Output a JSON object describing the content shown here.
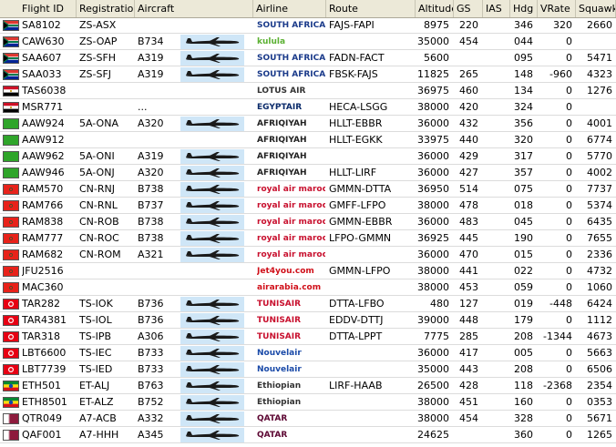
{
  "columns": {
    "flight_id": "Flight ID",
    "registration": "Registration",
    "aircraft": "Aircraft",
    "airline": "Airline",
    "route": "Route",
    "altitude": "Altitude",
    "gs": "GS",
    "ias": "IAS",
    "hdg": "Hdg",
    "vrate": "VRate",
    "squawk": "Squawk"
  },
  "rows": [
    {
      "flight_id": "SA8102",
      "registration": "ZS-ASX",
      "aircraft": "",
      "airline": "SOUTH AFRICAN AIRWAYS",
      "route": "FAJS-FAPI",
      "altitude": "8975",
      "gs": "220",
      "ias": "",
      "hdg": "346",
      "vrate": "320",
      "squawk": "2660",
      "flag": "za",
      "plane": false,
      "logo_color": "#1a3a8a"
    },
    {
      "flight_id": "CAW630",
      "registration": "ZS-OAP",
      "aircraft": "B734",
      "airline": "kulula",
      "route": "",
      "altitude": "35000",
      "gs": "454",
      "ias": "",
      "hdg": "044",
      "vrate": "0",
      "squawk": "",
      "flag": "za",
      "plane": true,
      "logo_color": "#5ab031"
    },
    {
      "flight_id": "SAA607",
      "registration": "ZS-SFH",
      "aircraft": "A319",
      "airline": "SOUTH AFRICAN AIRWAYS",
      "route": "FADN-FACT",
      "altitude": "5600",
      "gs": "",
      "ias": "",
      "hdg": "095",
      "vrate": "0",
      "squawk": "5471",
      "flag": "za",
      "plane": true,
      "logo_color": "#1a3a8a"
    },
    {
      "flight_id": "SAA033",
      "registration": "ZS-SFJ",
      "aircraft": "A319",
      "airline": "SOUTH AFRICAN AIRWAYS",
      "route": "FBSK-FAJS",
      "altitude": "11825",
      "gs": "265",
      "ias": "",
      "hdg": "148",
      "vrate": "-960",
      "squawk": "4323",
      "flag": "za",
      "plane": true,
      "logo_color": "#1a3a8a"
    },
    {
      "flight_id": "TAS6038",
      "registration": "",
      "aircraft": "",
      "airline": "LOTUS AIR",
      "route": "",
      "altitude": "36975",
      "gs": "460",
      "ias": "",
      "hdg": "134",
      "vrate": "0",
      "squawk": "1276",
      "flag": "eg",
      "plane": false,
      "logo_color": "#333333"
    },
    {
      "flight_id": "MSR771",
      "registration": "",
      "aircraft": "...",
      "airline": "EGYPTAIR",
      "route": "HECA-LSGG",
      "altitude": "38000",
      "gs": "420",
      "ias": "",
      "hdg": "324",
      "vrate": "0",
      "squawk": "",
      "flag": "eg",
      "plane": false,
      "logo_color": "#0a2a6a"
    },
    {
      "flight_id": "AAW924",
      "registration": "5A-ONA",
      "aircraft": "A320",
      "airline": "AFRIQIYAH",
      "route": "HLLT-EBBR",
      "altitude": "36000",
      "gs": "432",
      "ias": "",
      "hdg": "356",
      "vrate": "0",
      "squawk": "4001",
      "flag": "ly",
      "plane": true,
      "logo_color": "#222222"
    },
    {
      "flight_id": "AAW912",
      "registration": "",
      "aircraft": "",
      "airline": "AFRIQIYAH",
      "route": "HLLT-EGKK",
      "altitude": "33975",
      "gs": "440",
      "ias": "",
      "hdg": "320",
      "vrate": "0",
      "squawk": "6774",
      "flag": "ly",
      "plane": false,
      "logo_color": "#222222"
    },
    {
      "flight_id": "AAW962",
      "registration": "5A-ONI",
      "aircraft": "A319",
      "airline": "AFRIQIYAH",
      "route": "",
      "altitude": "36000",
      "gs": "429",
      "ias": "",
      "hdg": "317",
      "vrate": "0",
      "squawk": "5770",
      "flag": "ly",
      "plane": true,
      "logo_color": "#222222"
    },
    {
      "flight_id": "AAW946",
      "registration": "5A-ONJ",
      "aircraft": "A320",
      "airline": "AFRIQIYAH",
      "route": "HLLT-LIRF",
      "altitude": "36000",
      "gs": "427",
      "ias": "",
      "hdg": "357",
      "vrate": "0",
      "squawk": "4002",
      "flag": "ly",
      "plane": true,
      "logo_color": "#222222"
    },
    {
      "flight_id": "RAM570",
      "registration": "CN-RNJ",
      "aircraft": "B738",
      "airline": "royal air maroc",
      "route": "GMMN-DTTA",
      "altitude": "36950",
      "gs": "514",
      "ias": "",
      "hdg": "075",
      "vrate": "0",
      "squawk": "7737",
      "flag": "ma",
      "plane": true,
      "logo_color": "#c8102e"
    },
    {
      "flight_id": "RAM766",
      "registration": "CN-RNL",
      "aircraft": "B737",
      "airline": "royal air maroc",
      "route": "GMFF-LFPO",
      "altitude": "38000",
      "gs": "478",
      "ias": "",
      "hdg": "018",
      "vrate": "0",
      "squawk": "5374",
      "flag": "ma",
      "plane": true,
      "logo_color": "#c8102e"
    },
    {
      "flight_id": "RAM838",
      "registration": "CN-ROB",
      "aircraft": "B738",
      "airline": "royal air maroc",
      "route": "GMMN-EBBR",
      "altitude": "36000",
      "gs": "483",
      "ias": "",
      "hdg": "045",
      "vrate": "0",
      "squawk": "6435",
      "flag": "ma",
      "plane": true,
      "logo_color": "#c8102e"
    },
    {
      "flight_id": "RAM777",
      "registration": "CN-ROC",
      "aircraft": "B738",
      "airline": "royal air maroc",
      "route": "LFPO-GMMN",
      "altitude": "36925",
      "gs": "445",
      "ias": "",
      "hdg": "190",
      "vrate": "0",
      "squawk": "7655",
      "flag": "ma",
      "plane": true,
      "logo_color": "#c8102e"
    },
    {
      "flight_id": "RAM682",
      "registration": "CN-ROM",
      "aircraft": "A321",
      "airline": "royal air maroc",
      "route": "",
      "altitude": "36000",
      "gs": "470",
      "ias": "",
      "hdg": "015",
      "vrate": "0",
      "squawk": "2336",
      "flag": "ma",
      "plane": true,
      "logo_color": "#c8102e"
    },
    {
      "flight_id": "JFU2516",
      "registration": "",
      "aircraft": "",
      "airline": "Jet4you.com",
      "route": "GMMN-LFPO",
      "altitude": "38000",
      "gs": "441",
      "ias": "",
      "hdg": "022",
      "vrate": "0",
      "squawk": "4732",
      "flag": "ma",
      "plane": false,
      "logo_color": "#d0101a"
    },
    {
      "flight_id": "MAC360",
      "registration": "",
      "aircraft": "",
      "airline": "airarabia.com",
      "route": "",
      "altitude": "38000",
      "gs": "453",
      "ias": "",
      "hdg": "059",
      "vrate": "0",
      "squawk": "1060",
      "flag": "ma",
      "plane": false,
      "logo_color": "#d0101a"
    },
    {
      "flight_id": "TAR282",
      "registration": "TS-IOK",
      "aircraft": "B736",
      "airline": "TUNISAIR",
      "route": "DTTA-LFBO",
      "altitude": "480",
      "gs": "127",
      "ias": "",
      "hdg": "019",
      "vrate": "-448",
      "squawk": "6424",
      "flag": "tn",
      "plane": true,
      "logo_color": "#c8102e"
    },
    {
      "flight_id": "TAR4381",
      "registration": "TS-IOL",
      "aircraft": "B736",
      "airline": "TUNISAIR",
      "route": "EDDV-DTTJ",
      "altitude": "39000",
      "gs": "448",
      "ias": "",
      "hdg": "179",
      "vrate": "0",
      "squawk": "1112",
      "flag": "tn",
      "plane": true,
      "logo_color": "#c8102e"
    },
    {
      "flight_id": "TAR318",
      "registration": "TS-IPB",
      "aircraft": "A306",
      "airline": "TUNISAIR",
      "route": "DTTA-LPPT",
      "altitude": "7775",
      "gs": "285",
      "ias": "",
      "hdg": "208",
      "vrate": "-1344",
      "squawk": "4673",
      "flag": "tn",
      "plane": true,
      "logo_color": "#c8102e"
    },
    {
      "flight_id": "LBT6600",
      "registration": "TS-IEC",
      "aircraft": "B733",
      "airline": "Nouvelair",
      "route": "",
      "altitude": "36000",
      "gs": "417",
      "ias": "",
      "hdg": "005",
      "vrate": "0",
      "squawk": "5663",
      "flag": "tn",
      "plane": true,
      "logo_color": "#1a4aa8"
    },
    {
      "flight_id": "LBT7739",
      "registration": "TS-IED",
      "aircraft": "B733",
      "airline": "Nouvelair",
      "route": "",
      "altitude": "35000",
      "gs": "443",
      "ias": "",
      "hdg": "208",
      "vrate": "0",
      "squawk": "6506",
      "flag": "tn",
      "plane": true,
      "logo_color": "#1a4aa8"
    },
    {
      "flight_id": "ETH501",
      "registration": "ET-ALJ",
      "aircraft": "B763",
      "airline": "Ethiopian",
      "route": "LIRF-HAAB",
      "altitude": "26500",
      "gs": "428",
      "ias": "",
      "hdg": "118",
      "vrate": "-2368",
      "squawk": "2354",
      "flag": "et",
      "plane": true,
      "logo_color": "#333333"
    },
    {
      "flight_id": "ETH8501",
      "registration": "ET-ALZ",
      "aircraft": "B752",
      "airline": "Ethiopian",
      "route": "",
      "altitude": "38000",
      "gs": "451",
      "ias": "",
      "hdg": "160",
      "vrate": "0",
      "squawk": "0353",
      "flag": "et",
      "plane": true,
      "logo_color": "#333333"
    },
    {
      "flight_id": "QTR049",
      "registration": "A7-ACB",
      "aircraft": "A332",
      "airline": "QATAR",
      "route": "",
      "altitude": "38000",
      "gs": "454",
      "ias": "",
      "hdg": "328",
      "vrate": "0",
      "squawk": "5671",
      "flag": "qa",
      "plane": true,
      "logo_color": "#5c0632"
    },
    {
      "flight_id": "QAF001",
      "registration": "A7-HHH",
      "aircraft": "A345",
      "airline": "QATAR",
      "route": "",
      "altitude": "24625",
      "gs": "",
      "ias": "",
      "hdg": "360",
      "vrate": "0",
      "squawk": "1265",
      "flag": "qa",
      "plane": true,
      "logo_color": "#5c0632"
    }
  ],
  "colors": {
    "header_bg": "#ece9d8",
    "plane_bg": "#cfe6f7",
    "grid_line": "#dcdcdc"
  }
}
